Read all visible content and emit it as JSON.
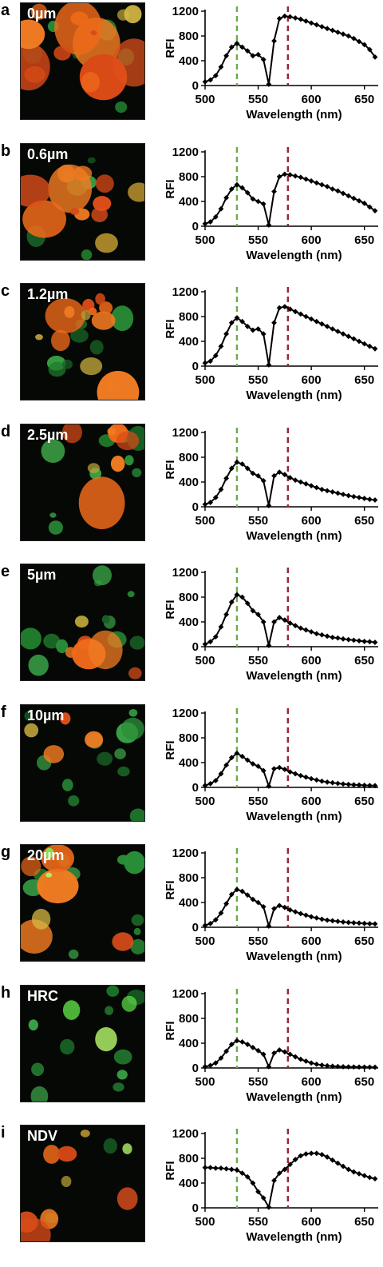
{
  "panels": [
    {
      "letter": "a",
      "label": "0µm",
      "cells": {
        "orange": 13,
        "green": 6,
        "yellow": 2,
        "bright_green": 0
      },
      "chart_data": {
        "type": "line",
        "xlabel": "Wavelength (nm)",
        "ylabel": "RFI",
        "xlim": [
          500,
          660
        ],
        "ylim": [
          0,
          1200
        ],
        "xticks": [
          500,
          550,
          600,
          650
        ],
        "yticks": [
          0,
          400,
          800,
          1200
        ],
        "markers": [
          {
            "x": 530,
            "color": "#6aad48"
          },
          {
            "x": 578,
            "color": "#9b2335"
          }
        ],
        "x": [
          500,
          505,
          510,
          515,
          520,
          525,
          530,
          535,
          540,
          545,
          550,
          555,
          560,
          565,
          570,
          575,
          580,
          585,
          590,
          595,
          600,
          605,
          610,
          615,
          620,
          625,
          630,
          635,
          640,
          645,
          650,
          655,
          660
        ],
        "y": [
          60,
          90,
          160,
          300,
          480,
          620,
          680,
          620,
          560,
          480,
          500,
          420,
          20,
          720,
          1080,
          1120,
          1110,
          1090,
          1070,
          1040,
          1010,
          980,
          950,
          920,
          890,
          860,
          830,
          800,
          760,
          710,
          660,
          580,
          460
        ]
      }
    },
    {
      "letter": "b",
      "label": "0.6µm",
      "cells": {
        "orange": 10,
        "green": 6,
        "yellow": 2,
        "bright_green": 0
      },
      "chart_data": {
        "type": "line",
        "xlabel": "Wavelength (nm)",
        "ylabel": "RFI",
        "xlim": [
          500,
          660
        ],
        "ylim": [
          0,
          1200
        ],
        "xticks": [
          500,
          550,
          600,
          650
        ],
        "yticks": [
          0,
          400,
          800,
          1200
        ],
        "markers": [
          {
            "x": 530,
            "color": "#6aad48"
          },
          {
            "x": 578,
            "color": "#9b2335"
          }
        ],
        "x": [
          500,
          505,
          510,
          515,
          520,
          525,
          530,
          535,
          540,
          545,
          550,
          555,
          560,
          565,
          570,
          575,
          580,
          585,
          590,
          595,
          600,
          605,
          610,
          615,
          620,
          625,
          630,
          635,
          640,
          645,
          650,
          655,
          660
        ],
        "y": [
          40,
          70,
          150,
          280,
          460,
          600,
          670,
          620,
          540,
          440,
          400,
          360,
          20,
          560,
          800,
          840,
          830,
          810,
          790,
          760,
          730,
          700,
          670,
          640,
          600,
          570,
          530,
          490,
          450,
          410,
          370,
          310,
          250
        ]
      }
    },
    {
      "letter": "c",
      "label": "1.2µm",
      "cells": {
        "orange": 10,
        "green": 7,
        "yellow": 3,
        "bright_green": 0
      },
      "chart_data": {
        "type": "line",
        "xlabel": "Wavelength (nm)",
        "ylabel": "RFI",
        "xlim": [
          500,
          660
        ],
        "ylim": [
          0,
          1200
        ],
        "xticks": [
          500,
          550,
          600,
          650
        ],
        "yticks": [
          0,
          400,
          800,
          1200
        ],
        "markers": [
          {
            "x": 530,
            "color": "#6aad48"
          },
          {
            "x": 578,
            "color": "#9b2335"
          }
        ],
        "x": [
          500,
          505,
          510,
          515,
          520,
          525,
          530,
          535,
          540,
          545,
          550,
          555,
          560,
          565,
          570,
          575,
          580,
          585,
          590,
          595,
          600,
          605,
          610,
          615,
          620,
          625,
          630,
          635,
          640,
          645,
          650,
          655,
          660
        ],
        "y": [
          50,
          80,
          170,
          320,
          520,
          700,
          780,
          720,
          640,
          580,
          600,
          520,
          20,
          700,
          940,
          960,
          920,
          880,
          840,
          800,
          760,
          720,
          680,
          640,
          600,
          560,
          520,
          480,
          440,
          400,
          360,
          320,
          280
        ]
      }
    },
    {
      "letter": "d",
      "label": "2.5µm",
      "cells": {
        "orange": 6,
        "green": 9,
        "yellow": 1,
        "bright_green": 0
      },
      "chart_data": {
        "type": "line",
        "xlabel": "Wavelength (nm)",
        "ylabel": "RFI",
        "xlim": [
          500,
          660
        ],
        "ylim": [
          0,
          1200
        ],
        "xticks": [
          500,
          550,
          600,
          650
        ],
        "yticks": [
          0,
          400,
          800,
          1200
        ],
        "markers": [
          {
            "x": 530,
            "color": "#6aad48"
          },
          {
            "x": 578,
            "color": "#9b2335"
          }
        ],
        "x": [
          500,
          505,
          510,
          515,
          520,
          525,
          530,
          535,
          540,
          545,
          550,
          555,
          560,
          565,
          570,
          575,
          580,
          585,
          590,
          595,
          600,
          605,
          610,
          615,
          620,
          625,
          630,
          635,
          640,
          645,
          650,
          655,
          660
        ],
        "y": [
          40,
          70,
          150,
          280,
          460,
          620,
          720,
          690,
          620,
          540,
          500,
          420,
          20,
          500,
          560,
          520,
          470,
          430,
          400,
          370,
          340,
          310,
          280,
          260,
          240,
          220,
          200,
          180,
          165,
          150,
          135,
          120,
          110
        ]
      }
    },
    {
      "letter": "e",
      "label": "5µm",
      "cells": {
        "orange": 5,
        "green": 11,
        "yellow": 1,
        "bright_green": 0
      },
      "chart_data": {
        "type": "line",
        "xlabel": "Wavelength (nm)",
        "ylabel": "RFI",
        "xlim": [
          500,
          660
        ],
        "ylim": [
          0,
          1200
        ],
        "xticks": [
          500,
          550,
          600,
          650
        ],
        "yticks": [
          0,
          400,
          800,
          1200
        ],
        "markers": [
          {
            "x": 530,
            "color": "#6aad48"
          },
          {
            "x": 578,
            "color": "#9b2335"
          }
        ],
        "x": [
          500,
          505,
          510,
          515,
          520,
          525,
          530,
          535,
          540,
          545,
          550,
          555,
          560,
          565,
          570,
          575,
          580,
          585,
          590,
          595,
          600,
          605,
          610,
          615,
          620,
          625,
          630,
          635,
          640,
          645,
          650,
          655,
          660
        ],
        "y": [
          40,
          80,
          160,
          320,
          520,
          720,
          840,
          800,
          700,
          580,
          520,
          400,
          20,
          400,
          470,
          430,
          380,
          340,
          300,
          270,
          240,
          210,
          190,
          170,
          150,
          140,
          125,
          115,
          105,
          95,
          85,
          80,
          70
        ]
      }
    },
    {
      "letter": "f",
      "label": "10µm",
      "cells": {
        "orange": 3,
        "green": 12,
        "yellow": 1,
        "bright_green": 0
      },
      "chart_data": {
        "type": "line",
        "xlabel": "Wavelength (nm)",
        "ylabel": "RFI",
        "xlim": [
          500,
          660
        ],
        "ylim": [
          0,
          1200
        ],
        "xticks": [
          500,
          550,
          600,
          650
        ],
        "yticks": [
          0,
          400,
          800,
          1200
        ],
        "markers": [
          {
            "x": 530,
            "color": "#6aad48"
          },
          {
            "x": 578,
            "color": "#9b2335"
          }
        ],
        "x": [
          500,
          505,
          510,
          515,
          520,
          525,
          530,
          535,
          540,
          545,
          550,
          555,
          560,
          565,
          570,
          575,
          580,
          585,
          590,
          595,
          600,
          605,
          610,
          615,
          620,
          625,
          630,
          635,
          640,
          645,
          650,
          655,
          660
        ],
        "y": [
          30,
          60,
          110,
          220,
          360,
          480,
          550,
          500,
          440,
          380,
          340,
          270,
          20,
          300,
          320,
          290,
          250,
          220,
          190,
          165,
          140,
          120,
          100,
          85,
          75,
          65,
          55,
          48,
          42,
          38,
          34,
          30,
          28
        ]
      }
    },
    {
      "letter": "g",
      "label": "20µm",
      "cells": {
        "orange": 5,
        "green": 10,
        "yellow": 1,
        "bright_green": 2
      },
      "chart_data": {
        "type": "line",
        "xlabel": "Wavelength (nm)",
        "ylabel": "RFI",
        "xlim": [
          500,
          660
        ],
        "ylim": [
          0,
          1200
        ],
        "xticks": [
          500,
          550,
          600,
          650
        ],
        "yticks": [
          0,
          400,
          800,
          1200
        ],
        "markers": [
          {
            "x": 530,
            "color": "#6aad48"
          },
          {
            "x": 578,
            "color": "#9b2335"
          }
        ],
        "x": [
          500,
          505,
          510,
          515,
          520,
          525,
          530,
          535,
          540,
          545,
          550,
          555,
          560,
          565,
          570,
          575,
          580,
          585,
          590,
          595,
          600,
          605,
          610,
          615,
          620,
          625,
          630,
          635,
          640,
          645,
          650,
          655,
          660
        ],
        "y": [
          30,
          60,
          120,
          230,
          380,
          530,
          610,
          580,
          520,
          450,
          400,
          330,
          20,
          300,
          350,
          320,
          280,
          250,
          220,
          195,
          170,
          150,
          130,
          115,
          105,
          95,
          85,
          78,
          72,
          68,
          62,
          58,
          55
        ]
      }
    },
    {
      "letter": "h",
      "label": "HRC",
      "cells": {
        "orange": 0,
        "green": 10,
        "yellow": 0,
        "bright_green": 3
      },
      "chart_data": {
        "type": "line",
        "xlabel": "Wavelength (nm)",
        "ylabel": "RFI",
        "xlim": [
          500,
          660
        ],
        "ylim": [
          0,
          1200
        ],
        "xticks": [
          500,
          550,
          600,
          650
        ],
        "yticks": [
          0,
          400,
          800,
          1200
        ],
        "markers": [
          {
            "x": 530,
            "color": "#6aad48"
          },
          {
            "x": 578,
            "color": "#9b2335"
          }
        ],
        "x": [
          500,
          505,
          510,
          515,
          520,
          525,
          530,
          535,
          540,
          545,
          550,
          555,
          560,
          565,
          570,
          575,
          580,
          585,
          590,
          595,
          600,
          605,
          610,
          615,
          620,
          625,
          630,
          635,
          640,
          645,
          650,
          655,
          660
        ],
        "y": [
          20,
          40,
          80,
          160,
          270,
          380,
          440,
          420,
          380,
          330,
          280,
          220,
          20,
          240,
          290,
          260,
          220,
          180,
          140,
          110,
          80,
          60,
          45,
          35,
          28,
          24,
          20,
          18,
          16,
          15,
          14,
          13,
          12
        ]
      }
    },
    {
      "letter": "i",
      "label": "NDV",
      "cells": {
        "orange": 6,
        "green": 2,
        "yellow": 2,
        "bright_green": 1
      },
      "chart_data": {
        "type": "line",
        "xlabel": "Wavelength (nm)",
        "ylabel": "RFI",
        "xlim": [
          500,
          660
        ],
        "ylim": [
          0,
          1200
        ],
        "xticks": [
          500,
          550,
          600,
          650
        ],
        "yticks": [
          0,
          400,
          800,
          1200
        ],
        "markers": [
          {
            "x": 530,
            "color": "#6aad48"
          },
          {
            "x": 578,
            "color": "#9b2335"
          }
        ],
        "x": [
          500,
          505,
          510,
          515,
          520,
          525,
          530,
          535,
          540,
          545,
          550,
          555,
          560,
          565,
          570,
          575,
          580,
          585,
          590,
          595,
          600,
          605,
          610,
          615,
          620,
          625,
          630,
          635,
          640,
          645,
          650,
          655,
          660
        ],
        "y": [
          650,
          650,
          640,
          640,
          630,
          620,
          610,
          560,
          500,
          400,
          260,
          160,
          10,
          440,
          560,
          620,
          700,
          780,
          840,
          870,
          880,
          880,
          860,
          820,
          770,
          720,
          670,
          620,
          580,
          550,
          520,
          490,
          470
        ]
      }
    }
  ]
}
